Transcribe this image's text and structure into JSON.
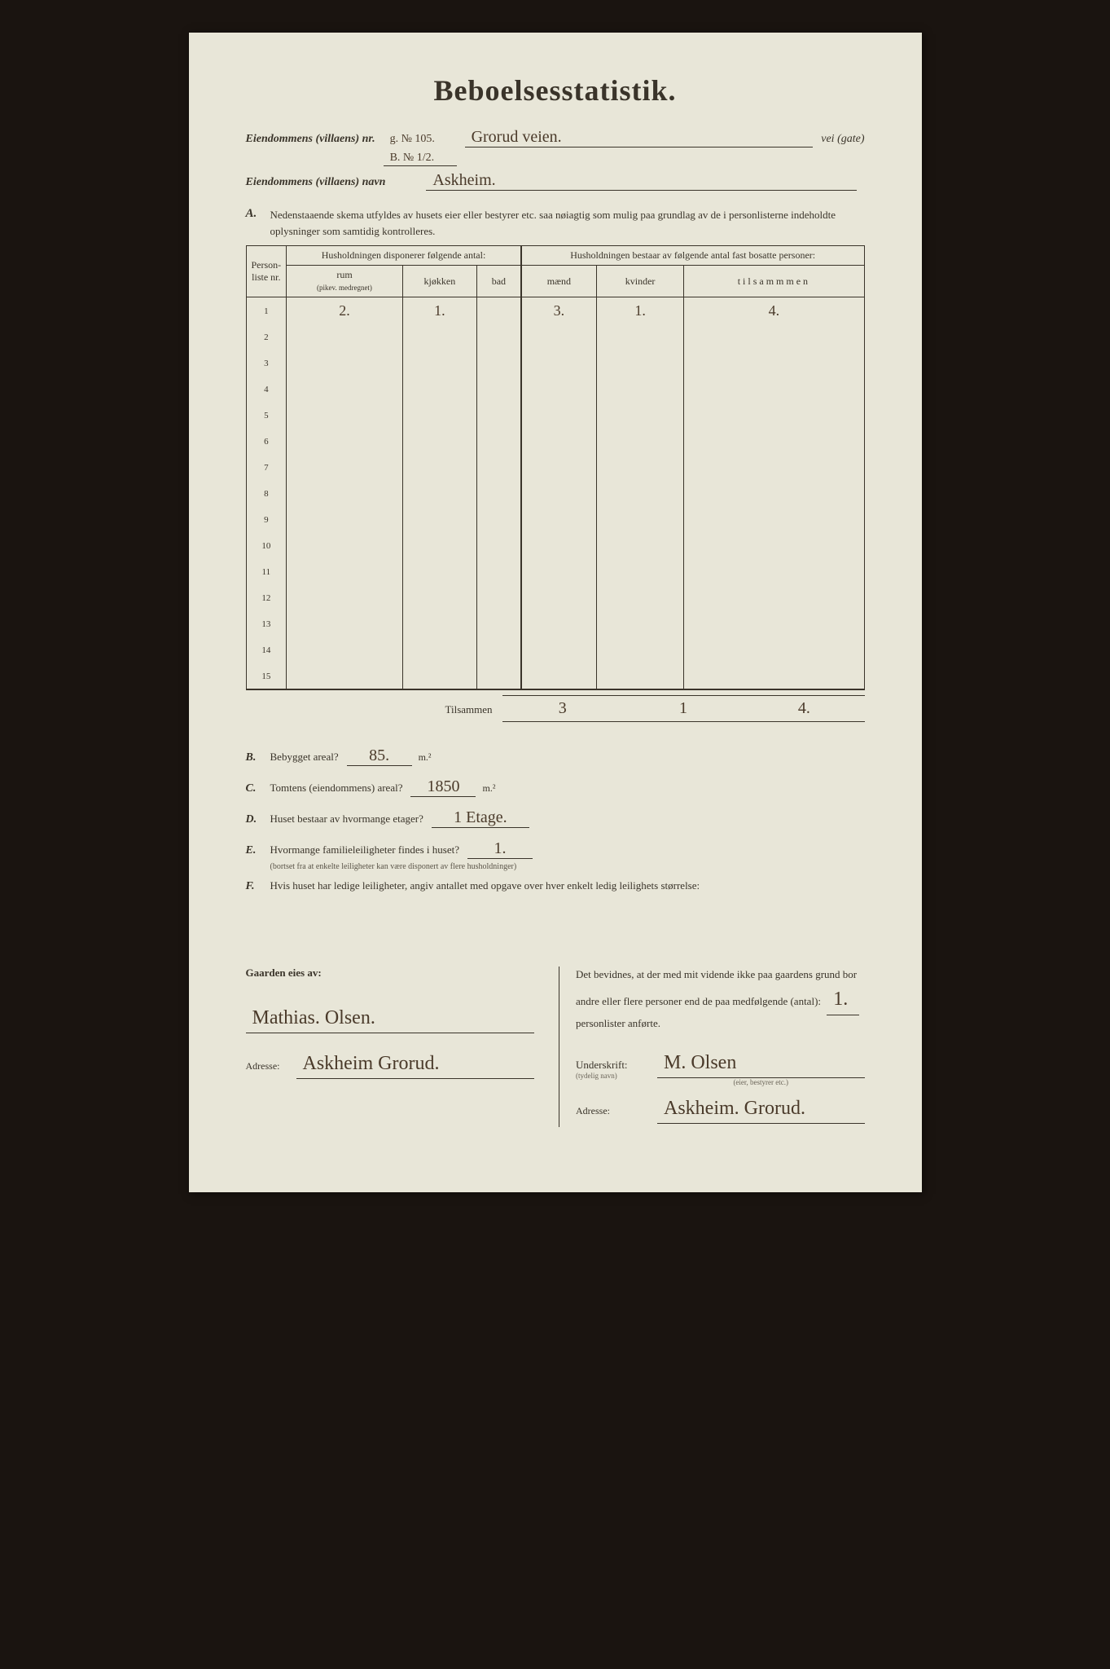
{
  "title": "Beboelsesstatistik.",
  "header": {
    "nr_label": "Eiendommens (villaens) nr.",
    "nr_value_top": "g. № 105.",
    "nr_value_bottom": "B. № 1/2.",
    "street_value": "Grorud veien.",
    "vei_gate": "vei (gate)",
    "navn_label": "Eiendommens (villaens) navn",
    "navn_value": "Askheim."
  },
  "section_a": {
    "letter": "A.",
    "text": "Nedenstaaende skema utfyldes av husets eier eller bestyrer etc. saa nøiagtig som mulig paa grundlag av de i personlisterne indeholdte oplysninger som samtidig kontrolleres."
  },
  "table": {
    "col_personliste": "Person-liste nr.",
    "group_disponerer": "Husholdningen disponerer følgende antal:",
    "group_bestaar": "Husholdningen bestaar av følgende antal fast bosatte personer:",
    "col_rum": "rum",
    "col_rum_sub": "(pikev. medregnet)",
    "col_kjokken": "kjøkken",
    "col_bad": "bad",
    "col_maend": "mænd",
    "col_kvinder": "kvinder",
    "col_tilsammen": "tilsammmen",
    "rows": [
      {
        "n": "1",
        "rum": "2.",
        "kjokken": "1.",
        "bad": "",
        "maend": "3.",
        "kvinder": "1.",
        "tils": "4."
      },
      {
        "n": "2",
        "rum": "",
        "kjokken": "",
        "bad": "",
        "maend": "",
        "kvinder": "",
        "tils": ""
      },
      {
        "n": "3",
        "rum": "",
        "kjokken": "",
        "bad": "",
        "maend": "",
        "kvinder": "",
        "tils": ""
      },
      {
        "n": "4",
        "rum": "",
        "kjokken": "",
        "bad": "",
        "maend": "",
        "kvinder": "",
        "tils": ""
      },
      {
        "n": "5",
        "rum": "",
        "kjokken": "",
        "bad": "",
        "maend": "",
        "kvinder": "",
        "tils": ""
      },
      {
        "n": "6",
        "rum": "",
        "kjokken": "",
        "bad": "",
        "maend": "",
        "kvinder": "",
        "tils": ""
      },
      {
        "n": "7",
        "rum": "",
        "kjokken": "",
        "bad": "",
        "maend": "",
        "kvinder": "",
        "tils": ""
      },
      {
        "n": "8",
        "rum": "",
        "kjokken": "",
        "bad": "",
        "maend": "",
        "kvinder": "",
        "tils": ""
      },
      {
        "n": "9",
        "rum": "",
        "kjokken": "",
        "bad": "",
        "maend": "",
        "kvinder": "",
        "tils": ""
      },
      {
        "n": "10",
        "rum": "",
        "kjokken": "",
        "bad": "",
        "maend": "",
        "kvinder": "",
        "tils": ""
      },
      {
        "n": "11",
        "rum": "",
        "kjokken": "",
        "bad": "",
        "maend": "",
        "kvinder": "",
        "tils": ""
      },
      {
        "n": "12",
        "rum": "",
        "kjokken": "",
        "bad": "",
        "maend": "",
        "kvinder": "",
        "tils": ""
      },
      {
        "n": "13",
        "rum": "",
        "kjokken": "",
        "bad": "",
        "maend": "",
        "kvinder": "",
        "tils": ""
      },
      {
        "n": "14",
        "rum": "",
        "kjokken": "",
        "bad": "",
        "maend": "",
        "kvinder": "",
        "tils": ""
      },
      {
        "n": "15",
        "rum": "",
        "kjokken": "",
        "bad": "",
        "maend": "",
        "kvinder": "",
        "tils": ""
      }
    ],
    "total_label": "Tilsammen",
    "total_maend": "3",
    "total_kvinder": "1",
    "total_tils": "4."
  },
  "questions": {
    "b": {
      "letter": "B.",
      "text": "Bebygget areal?",
      "answer": "85.",
      "unit": "m.²"
    },
    "c": {
      "letter": "C.",
      "text": "Tomtens (eiendommens) areal?",
      "answer": "1850",
      "unit": "m.²"
    },
    "d": {
      "letter": "D.",
      "text": "Huset bestaar av hvormange etager?",
      "answer": "1 Etage."
    },
    "e": {
      "letter": "E.",
      "text": "Hvormange familieleiligheter findes i huset?",
      "answer": "1.",
      "sub": "(bortset fra at enkelte leiligheter kan være disponert av flere husholdninger)"
    },
    "f": {
      "letter": "F.",
      "text": "Hvis huset har ledige leiligheter, angiv antallet med opgave over hver enkelt ledig leilighets størrelse:"
    }
  },
  "footer": {
    "left_heading": "Gaarden eies av:",
    "owner_name": "Mathias. Olsen.",
    "adresse_label": "Adresse:",
    "owner_adresse": "Askheim Grorud.",
    "right_text": "Det bevidnes, at der med mit vidende ikke paa gaardens grund bor andre eller flere personer end de paa medfølgende (antal):",
    "antal_value": "1.",
    "right_text_suffix": "personlister anførte.",
    "underskrift_label": "Underskrift:",
    "underskrift_sub": "(tydelig navn)",
    "signature": "M. Olsen",
    "signature_sub": "(eier, bestyrer etc.)",
    "sig_adresse": "Askheim. Grorud."
  }
}
